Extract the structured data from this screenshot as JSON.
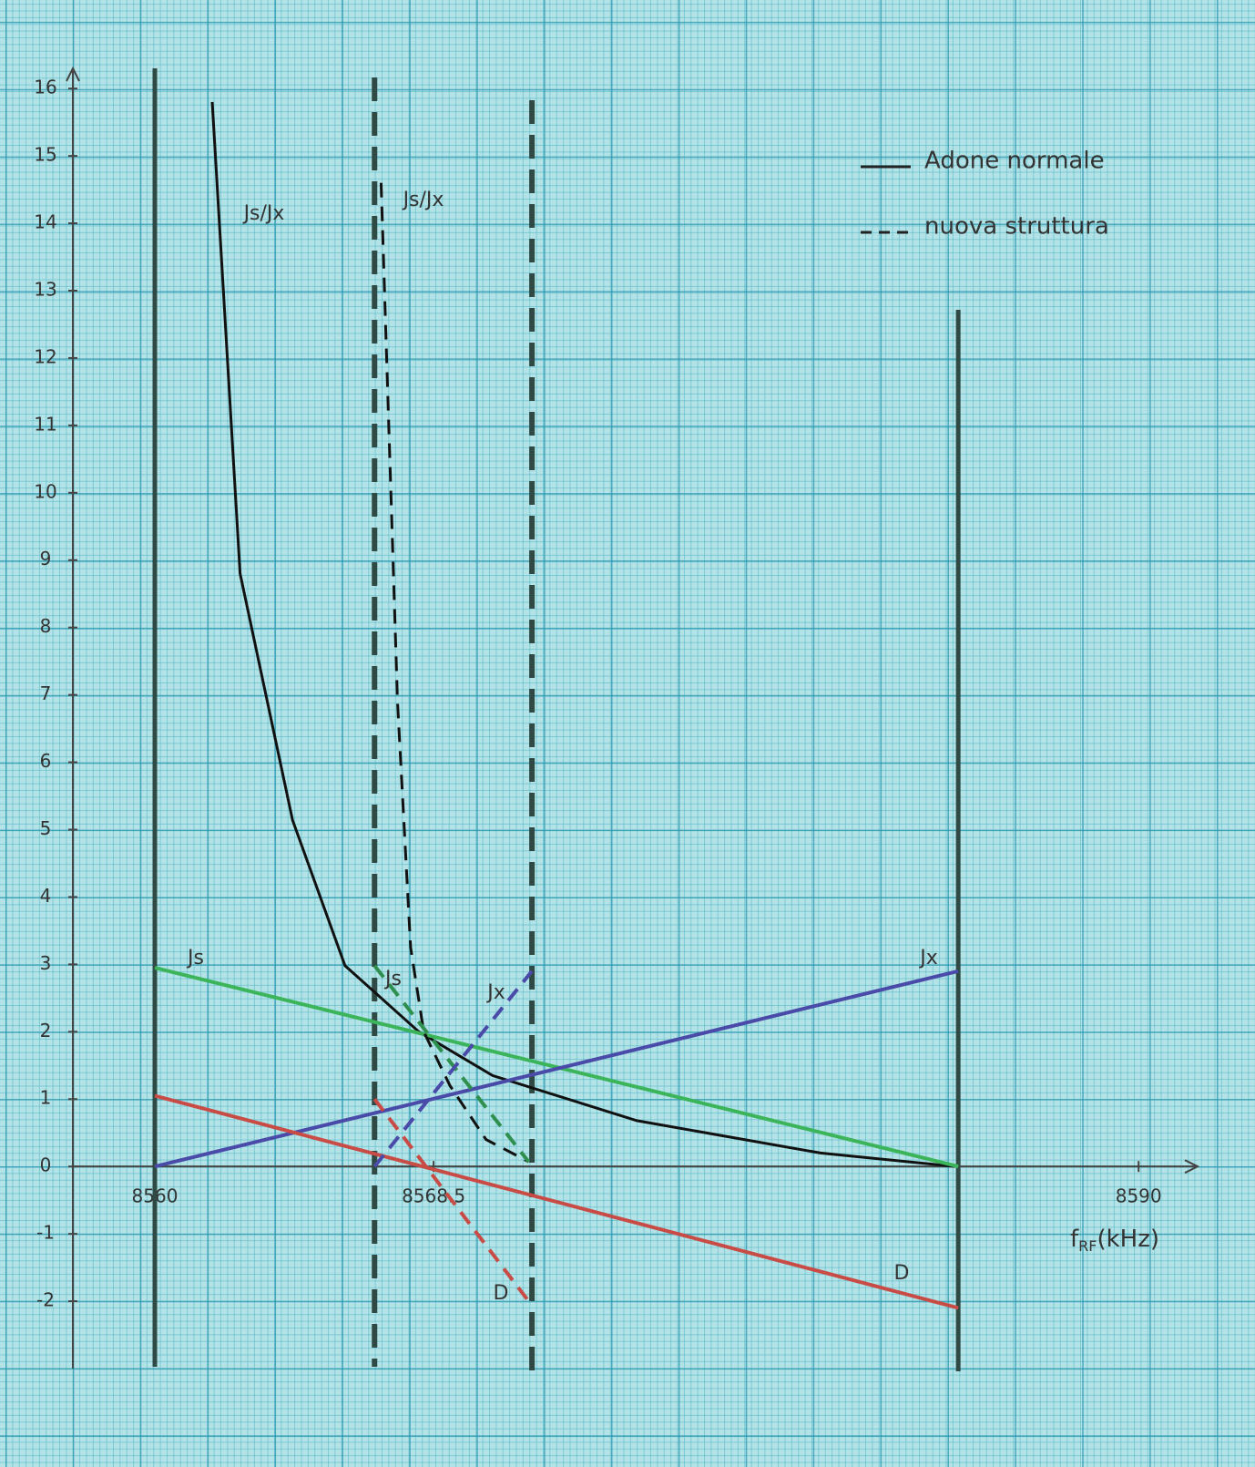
{
  "chart_data": {
    "type": "line",
    "x_label_symbol": "f",
    "x_label_subscript": "RF",
    "x_label_unit": "(kHz)",
    "xlim": [
      8557.5,
      8591.8
    ],
    "xticks": [
      8560,
      8568.5,
      8590
    ],
    "ylim": [
      -3,
      16.3
    ],
    "yticks": [
      -2,
      -1,
      0,
      1,
      2,
      3,
      4,
      5,
      6,
      7,
      8,
      9,
      10,
      11,
      12,
      13,
      14,
      15,
      16
    ],
    "limits": [
      {
        "x": 8560,
        "dashed": false
      },
      {
        "x": 8584.5,
        "dashed": false
      },
      {
        "x": 8566.7,
        "dashed": true
      },
      {
        "x": 8571.5,
        "dashed": true
      }
    ],
    "groups": [
      {
        "name": "Adone normale",
        "dashed": false,
        "series": [
          {
            "name": "Js/Jx",
            "color": "#111111",
            "x": [
              8561.75,
              8562.6,
              8564.2,
              8565.8,
              8568.05,
              8570.3,
              8574.7,
              8580.3,
              8584.4
            ],
            "values": [
              15.8,
              8.8,
              5.14,
              2.98,
              2.0,
              1.35,
              0.68,
              0.2,
              0
            ]
          },
          {
            "name": "Js",
            "color": "#3cb45a",
            "x": [
              8560,
              8584.5
            ],
            "values": [
              2.95,
              0
            ]
          },
          {
            "name": "Jx",
            "color": "#4a4aa8",
            "x": [
              8560,
              8584.5
            ],
            "values": [
              0,
              2.9
            ]
          },
          {
            "name": "D",
            "color": "#c84b46",
            "x": [
              8560,
              8584.5
            ],
            "values": [
              1.05,
              -2.1
            ]
          }
        ]
      },
      {
        "name": "nuova struttura",
        "dashed": true,
        "series": [
          {
            "name": "Js/Jx",
            "color": "#111111",
            "x": [
              8566.9,
              8567.4,
              8567.8,
              8568.2,
              8569.0,
              8570.1,
              8571.4
            ],
            "values": [
              14.6,
              6.9,
              3.25,
              2.0,
              1.2,
              0.4,
              0.07
            ]
          },
          {
            "name": "Js",
            "color": "#2e8f4e",
            "x": [
              8566.7,
              8571.4
            ],
            "values": [
              2.98,
              0.07
            ]
          },
          {
            "name": "Jx",
            "color": "#4a4aa8",
            "x": [
              8566.7,
              8571.5
            ],
            "values": [
              0,
              2.9
            ]
          },
          {
            "name": "D",
            "color": "#c84b46",
            "x": [
              8566.7,
              8571.4
            ],
            "values": [
              1.0,
              -2.0
            ]
          }
        ]
      }
    ]
  }
}
